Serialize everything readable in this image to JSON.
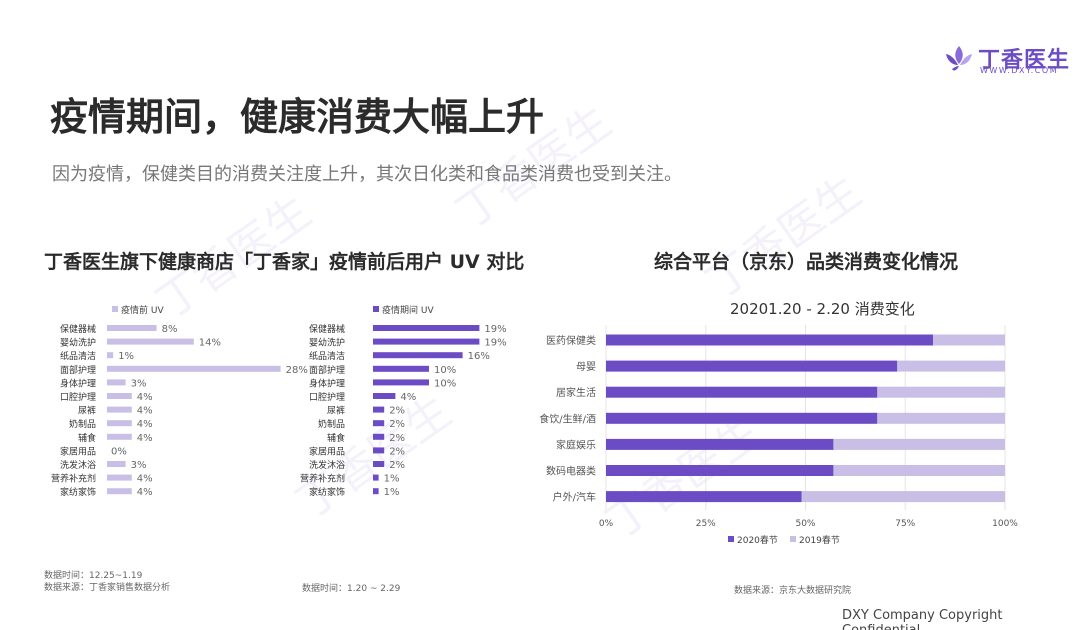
{
  "brand": {
    "name_cn": "丁香医生",
    "name_en": "WWW.DXY.COM",
    "accent": "#6b4cc4"
  },
  "page": {
    "title": "疫情期间，健康消费大幅上升",
    "subtitle": "因为疫情，保健类目的消费关注度上升，其次日化类和食品类消费也受到关注。",
    "copyright": "DXY Company Copyright Confidential"
  },
  "left_section": {
    "title": "丁香医生旗下健康商店「丁香家」疫情前后用户 UV 对比"
  },
  "right_section": {
    "title": "综合平台（京东）品类消费变化情况"
  },
  "notes": {
    "left_time": "数据时间：12.25~1.19",
    "left_source": "数据来源：丁香家销售数据分析",
    "mid_time": "数据时间：1.20 ~ 2.29",
    "right_source": "数据来源：京东大数据研究院"
  },
  "chart_data": [
    {
      "type": "bar",
      "orientation": "horizontal",
      "legend": "疫情前 UV",
      "color": "#c9bfe6",
      "categories": [
        "保健器械",
        "婴幼洗护",
        "纸品清洁",
        "面部护理",
        "身体护理",
        "口腔护理",
        "尿裤",
        "奶制品",
        "辅食",
        "家居用品",
        "洗发沐浴",
        "营养补充剂",
        "家纺家饰"
      ],
      "values": [
        8,
        14,
        1,
        28,
        3,
        4,
        4,
        4,
        4,
        0,
        3,
        4,
        4
      ],
      "value_labels": [
        "8%",
        "14%",
        "1%",
        "28%",
        "3%",
        "4%",
        "4%",
        "4%",
        "4%",
        "0%",
        "3%",
        "4%",
        "4%"
      ]
    },
    {
      "type": "bar",
      "orientation": "horizontal",
      "legend": "疫情期间 UV",
      "color": "#6b4cc4",
      "categories": [
        "保健器械",
        "婴幼洗护",
        "纸品清洁",
        "面部护理",
        "身体护理",
        "口腔护理",
        "尿裤",
        "奶制品",
        "辅食",
        "家居用品",
        "洗发沐浴",
        "营养补充剂",
        "家纺家饰"
      ],
      "values": [
        19,
        19,
        16,
        10,
        10,
        4,
        2,
        2,
        2,
        2,
        2,
        1,
        1
      ],
      "value_labels": [
        "19%",
        "19%",
        "16%",
        "10%",
        "10%",
        "4%",
        "2%",
        "2%",
        "2%",
        "2%",
        "2%",
        "1%",
        "1%"
      ]
    },
    {
      "type": "bar",
      "orientation": "horizontal",
      "stacked": "100%",
      "title": "20201.20 - 2.20 消费变化",
      "categories": [
        "医药保健类",
        "母婴",
        "居家生活",
        "食饮/生鲜/酒",
        "家庭娱乐",
        "数码电器类",
        "户外/汽车"
      ],
      "series": [
        {
          "name": "2020春节",
          "color": "#6b4cc4",
          "values": [
            82,
            73,
            68,
            68,
            57,
            57,
            49
          ]
        },
        {
          "name": "2019春节",
          "color": "#c9bfe6",
          "values": [
            18,
            27,
            32,
            32,
            43,
            43,
            51
          ]
        }
      ],
      "xlim": [
        0,
        100
      ],
      "xticks": [
        "0%",
        "25%",
        "50%",
        "75%",
        "100%"
      ],
      "legend_position": "bottom"
    }
  ]
}
